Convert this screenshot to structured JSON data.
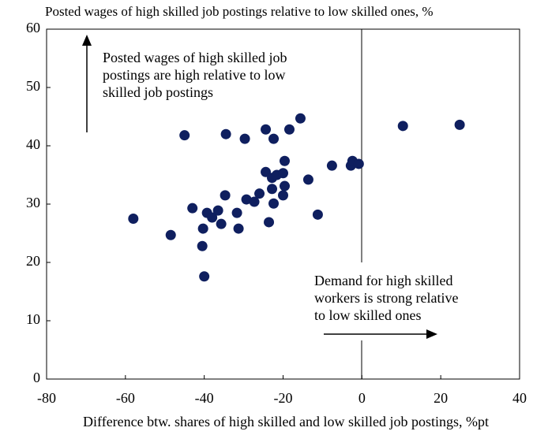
{
  "chart_data": {
    "type": "scatter",
    "title": "Posted wages of high skilled job postings relative to low skilled ones, %",
    "x_label": "Difference btw. shares of high skilled and low skilled job postings, %pt",
    "annotations": [
      {
        "lines": [
          "Posted wages of high skilled job",
          "postings are high relative to low",
          "skilled job postings"
        ]
      },
      {
        "lines": [
          "Demand for high skilled",
          "workers is strong relative",
          "to low skilled ones"
        ]
      }
    ],
    "color": "#0f1f5f",
    "xlim": [
      -80,
      40
    ],
    "xticks": [
      -80,
      -60,
      -40,
      -20,
      0,
      20,
      40
    ],
    "ylim": [
      0,
      60
    ],
    "yticks": [
      0,
      10,
      20,
      30,
      40,
      50,
      60
    ],
    "x": [
      -58,
      -48.5,
      -45,
      -43,
      -40.3,
      -40.5,
      -40,
      -39.3,
      -38,
      -36.5,
      -35.7,
      -34.7,
      -34.5,
      -31.7,
      -31.3,
      -29.7,
      -29.3,
      -27.3,
      -26,
      -24.4,
      -24.4,
      -23.6,
      -22.8,
      -22.8,
      -22.4,
      -22.4,
      -21.6,
      -20,
      -19.6,
      -19.6,
      -20,
      -18.4,
      -15.6,
      -13.6,
      -11.2,
      -7.6,
      -2.8,
      -2.4,
      -0.8,
      10.4,
      24.8
    ],
    "y": [
      27.5,
      24.7,
      41.8,
      29.3,
      25.8,
      22.8,
      17.6,
      28.5,
      27.7,
      28.9,
      26.6,
      31.5,
      42,
      28.5,
      25.8,
      41.2,
      30.8,
      30.4,
      31.8,
      35.5,
      42.8,
      26.9,
      32.6,
      34.5,
      30.1,
      41.2,
      35,
      35.3,
      37.4,
      33.1,
      31.5,
      42.8,
      44.7,
      34.2,
      28.2,
      36.6,
      36.6,
      37.4,
      36.9,
      43.4,
      43.6
    ]
  }
}
